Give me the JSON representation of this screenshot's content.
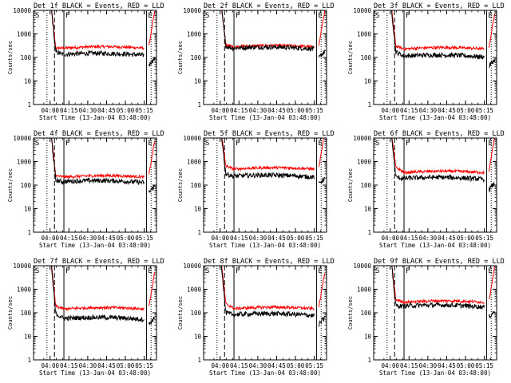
{
  "chart_data": {
    "type": "line",
    "panels": [
      {
        "title": "Det 1f BLACK = Events, RED = LLD",
        "black_level": 130,
        "red_level": 250,
        "black_gap_level": 45,
        "red_early_peak": 250,
        "black_early_peak": 170,
        "markers": {
          "S": "S",
          "F": "F",
          "E": "E"
        }
      },
      {
        "title": "Det 2f BLACK = Events, RED = LLD",
        "black_level": 240,
        "red_level": 280,
        "black_gap_level": 90,
        "red_early_peak": 350,
        "black_early_peak": 300,
        "markers": {
          "S": "S",
          "F": "F",
          "E": "E"
        }
      },
      {
        "title": "Det 3f BLACK = Events, RED = LLD",
        "black_level": 110,
        "red_level": 230,
        "black_gap_level": 40,
        "red_early_peak": 300,
        "black_early_peak": 170,
        "markers": {
          "S": "S",
          "F": "F",
          "E": "E"
        }
      },
      {
        "title": "Det 4f BLACK = Events, RED = LLD",
        "black_level": 135,
        "red_level": 220,
        "black_gap_level": 45,
        "red_early_peak": 250,
        "black_early_peak": 160,
        "markers": {
          "S": "S",
          "F": "F",
          "E": "E"
        }
      },
      {
        "title": "Det 5f BLACK = Events, RED = LLD",
        "black_level": 230,
        "red_level": 480,
        "black_gap_level": 100,
        "red_early_peak": 650,
        "black_early_peak": 300,
        "markers": {
          "S": "S",
          "F": "F",
          "E": "E"
        }
      },
      {
        "title": "Det 6f BLACK = Events, RED = LLD",
        "black_level": 185,
        "red_level": 340,
        "black_gap_level": 60,
        "red_early_peak": 550,
        "black_early_peak": 220,
        "markers": {
          "S": "S",
          "F": "F",
          "E": "E"
        }
      },
      {
        "title": "Det 7f BLACK = Events, RED = LLD",
        "black_level": 55,
        "red_level": 145,
        "black_gap_level": 30,
        "red_early_peak": 190,
        "black_early_peak": 90,
        "markers": {
          "S": "S",
          "F": "F",
          "E": "E"
        }
      },
      {
        "title": "Det 8f BLACK = Events, RED = LLD",
        "black_level": 80,
        "red_level": 150,
        "black_gap_level": 30,
        "red_early_peak": 240,
        "black_early_peak": 100,
        "markers": {
          "S": "S",
          "F": "F",
          "E": "E"
        }
      },
      {
        "title": "Det 9f BLACK = Events, RED = LLD",
        "black_level": 185,
        "red_level": 280,
        "black_gap_level": 60,
        "red_early_peak": 360,
        "black_early_peak": 200,
        "markers": {
          "S": "S",
          "F": "F",
          "E": "E"
        }
      }
    ],
    "x_ticks": [
      "04:00",
      "04:15",
      "04:30",
      "04:45",
      "05:00",
      "05:15"
    ],
    "x_tick_minutes": [
      240,
      255,
      270,
      285,
      300,
      315
    ],
    "x_range_minutes": [
      226.8,
      324.8
    ],
    "xlabel": "Start Time (13-Jan-04 03:48:00)",
    "ylabel": "Counts/sec",
    "y_scale": "log",
    "y_range": [
      1,
      10000
    ],
    "y_ticks": [
      "1",
      "10",
      "100",
      "1000",
      "10000"
    ],
    "y_tick_values": [
      1,
      10,
      100,
      1000,
      10000
    ],
    "events_color": "#000000",
    "lld_color": "#ff0000",
    "vertical_markers_minutes": {
      "dotted_start": 237.5,
      "dashed_start": 243.5,
      "solid_F": 251.0,
      "solid_E": 316.8,
      "dotted_end": 320.5
    },
    "data_start_minutes": 240.0,
    "data_end_minutes": 323.5,
    "gap_start_minutes": 315.0,
    "gap_end_minutes": 318.5
  }
}
